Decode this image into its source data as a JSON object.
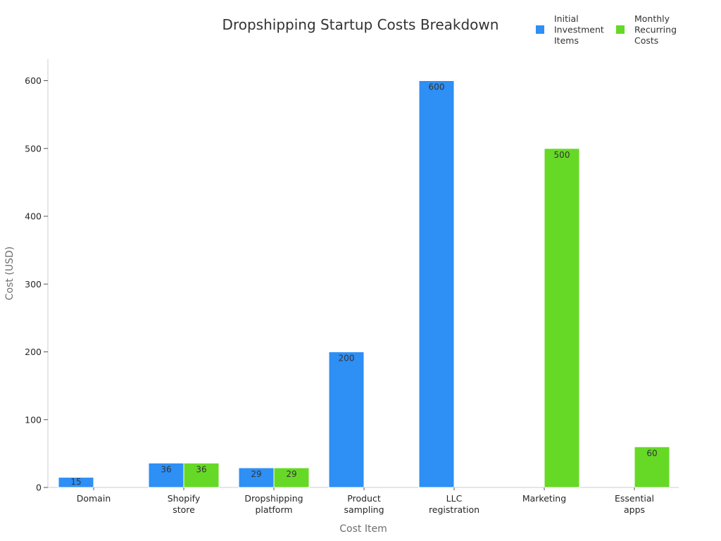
{
  "chart_data": {
    "type": "bar",
    "title": "Dropshipping Startup Costs Breakdown",
    "xlabel": "Cost Item",
    "ylabel": "Cost (USD)",
    "categories": [
      [
        "Domain"
      ],
      [
        "Shopify",
        "store"
      ],
      [
        "Dropshipping",
        "platform"
      ],
      [
        "Product",
        "sampling"
      ],
      [
        "LLC",
        "registration"
      ],
      [
        "Marketing"
      ],
      [
        "Essential",
        "apps"
      ]
    ],
    "series": [
      {
        "name": [
          "Initial",
          "Investment",
          "Items"
        ],
        "color": "#2e8ff5",
        "values": [
          15,
          36,
          29,
          200,
          600,
          null,
          null
        ]
      },
      {
        "name": [
          "Monthly",
          "Recurring",
          "Costs"
        ],
        "color": "#66d926",
        "values": [
          null,
          36,
          29,
          null,
          null,
          500,
          60
        ]
      }
    ],
    "ylim": [
      0,
      630
    ],
    "yticks": [
      0,
      100,
      200,
      300,
      400,
      500,
      600
    ],
    "grid": false,
    "legend_position": "top-right"
  }
}
